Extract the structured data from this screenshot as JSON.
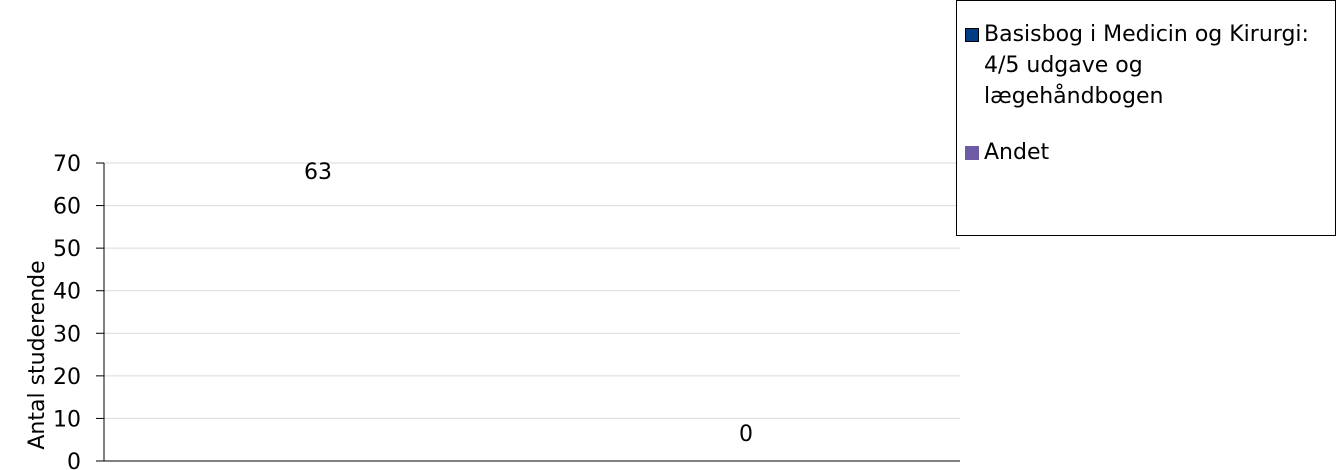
{
  "chart_data": {
    "type": "bar",
    "categories": [
      "",
      ""
    ],
    "series": [
      {
        "name": "Basisbog i Medicin og Kirurgi: 4/5 udgave og lægehåndbogen",
        "values": [
          63,
          null
        ],
        "color": "#003C82"
      },
      {
        "name": "Andet",
        "values": [
          null,
          0
        ],
        "color": "#6E5BA5"
      }
    ],
    "data_labels": [
      "63",
      "0"
    ],
    "ylabel": "Antal studerende",
    "ylim": [
      0,
      70
    ],
    "yticks": [
      0,
      10,
      20,
      30,
      40,
      50,
      60,
      70
    ],
    "grid": true,
    "legend_position": "top-right"
  }
}
